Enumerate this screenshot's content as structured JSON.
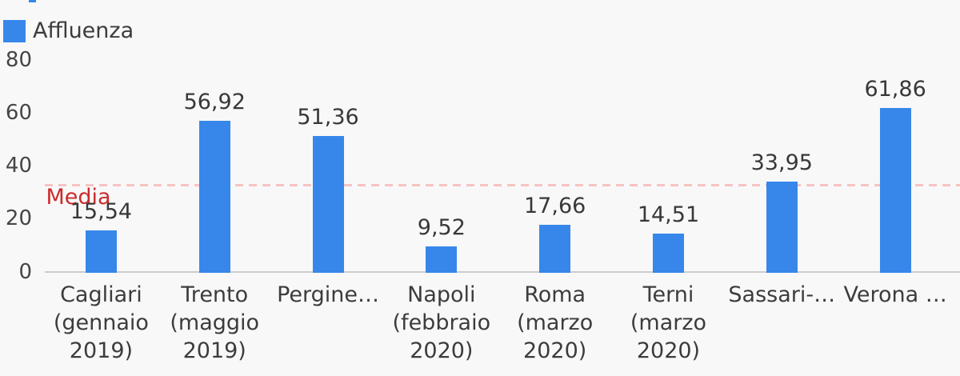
{
  "legend": {
    "label": "Affluenza"
  },
  "colors": {
    "background": "#f8f8f8",
    "bar": "#3787ea",
    "axis_line": "#cccccc",
    "tick_text": "#454545",
    "label_text": "#3c3c3c",
    "reference_line": "#f6c3c3",
    "reference_label": "#cc2b2b"
  },
  "chart_data": {
    "type": "bar",
    "title": "",
    "legend_entries": [
      "Affluenza"
    ],
    "legend_position": "top-left",
    "grid": false,
    "ylim": [
      0,
      80
    ],
    "yticks": [
      "0",
      "20",
      "40",
      "60",
      "80"
    ],
    "categories": [
      "Cagliari (gennaio 2019)",
      "Trento (maggio 2019)",
      "Pergine…",
      "Napoli (febbraio 2020)",
      "Roma (marzo 2020)",
      "Terni (marzo 2020)",
      "Sassari-…",
      "Verona …"
    ],
    "category_lines": [
      [
        "Cagliari",
        "(gennaio",
        "2019)"
      ],
      [
        "Trento",
        "(maggio",
        "2019)"
      ],
      [
        "Pergine…"
      ],
      [
        "Napoli",
        "(febbraio",
        "2020)"
      ],
      [
        "Roma",
        "(marzo",
        "2020)"
      ],
      [
        "Terni",
        "(marzo",
        "2020)"
      ],
      [
        "Sassari-…"
      ],
      [
        "Verona …"
      ]
    ],
    "series": [
      {
        "name": "Affluenza",
        "values": [
          15.54,
          56.92,
          51.36,
          9.52,
          17.66,
          14.51,
          33.95,
          61.86
        ],
        "value_labels": [
          "15,54",
          "56,92",
          "51,36",
          "9,52",
          "17,66",
          "14,51",
          "33,95",
          "61,86"
        ]
      }
    ],
    "reference_line": {
      "label": "Media",
      "value": 32.67,
      "style": "dashed"
    }
  }
}
